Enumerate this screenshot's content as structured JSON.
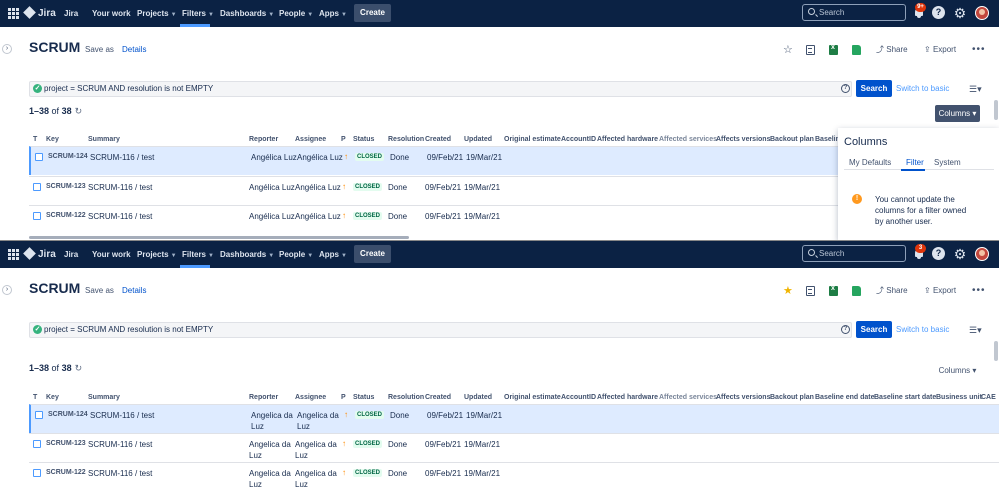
{
  "nav": {
    "logo": "Jira",
    "items": [
      "Jira",
      "Your work",
      "Projects",
      "Filters",
      "Dashboards",
      "People",
      "Apps"
    ],
    "create": "Create",
    "search_placeholder": "Search",
    "badge_top": "9+",
    "badge_bottom": "3"
  },
  "page": {
    "title": "SCRUM",
    "save_as": "Save as",
    "details": "Details",
    "share": "Share",
    "export": "Export"
  },
  "jql": {
    "query": "project = SCRUM AND resolution is not EMPTY",
    "search": "Search",
    "switch_basic": "Switch to basic"
  },
  "results": {
    "range": "1–38",
    "of": "of",
    "total": "38",
    "columns_label": "Columns"
  },
  "table": {
    "headers": [
      "T",
      "Key",
      "Summary",
      "Reporter",
      "Assignee",
      "P",
      "Status",
      "Resolution",
      "Created",
      "Updated",
      "Original estimate",
      "AccountID",
      "Affected hardware",
      "Affected services",
      "Affects versions",
      "Backout plan",
      "Baseline end date",
      "Baseline start date",
      "Business unit",
      "CAB"
    ],
    "header_top_truncated": "Baseline",
    "header_bottom_truncated": "CAE",
    "summary_parent": "SCRUM-116",
    "summary_sep": "/",
    "summary_text": "test",
    "rows": [
      {
        "key": "SCRUM-124",
        "resolution": "Done",
        "created": "09/Feb/21",
        "updated": "19/Mar/21",
        "status": "CLOSED",
        "priority_icon": "↑"
      },
      {
        "key": "SCRUM-123",
        "resolution": "Done",
        "created": "09/Feb/21",
        "updated": "19/Mar/21",
        "status": "CLOSED",
        "priority_icon": "↑"
      },
      {
        "key": "SCRUM-122",
        "resolution": "Done",
        "created": "09/Feb/21",
        "updated": "19/Mar/21",
        "status": "CLOSED",
        "priority_icon": "↑"
      }
    ],
    "people_top": {
      "reporter": "Angélica Luz",
      "assignee": "Angélica Luz"
    },
    "people_bottom": {
      "reporter": "Angelica da Luz",
      "assignee": "Angelica da Luz"
    }
  },
  "columns_panel": {
    "title": "Columns",
    "tabs": [
      "My Defaults",
      "Filter",
      "System"
    ],
    "selected_tab": "Filter",
    "message": "You cannot update the columns for a filter owned by another user."
  },
  "icons": [
    "app-switcher-icon",
    "jira-logo-icon",
    "search-icon",
    "bell-icon",
    "help-icon",
    "gear-icon",
    "avatar",
    "star-icon",
    "list-view-icon",
    "excel-icon",
    "sheets-icon",
    "share-icon",
    "export-icon",
    "more-icon",
    "check-icon",
    "refresh-icon",
    "story-icon",
    "priority-icon",
    "warning-icon"
  ],
  "colors": {
    "nav_bg": "#0b2244",
    "primary": "#0052cc",
    "selected_row": "#deebff",
    "closed": "#006644",
    "star_fav": "#f0b400"
  }
}
